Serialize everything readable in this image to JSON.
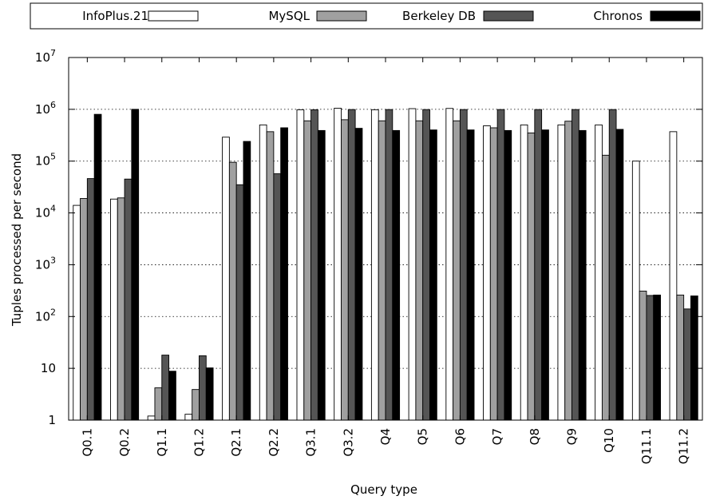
{
  "chart_data": {
    "type": "bar",
    "xlabel": "Query type",
    "ylabel": "Tuples processed per second",
    "yscale": "log",
    "ylim": [
      1,
      10000000
    ],
    "grid": "horizontal dotted",
    "legend_position": "top",
    "yticks": [
      {
        "value": 1,
        "base": "1",
        "exp": ""
      },
      {
        "value": 10,
        "base": "10",
        "exp": ""
      },
      {
        "value": 100,
        "base": "10",
        "exp": "2"
      },
      {
        "value": 1000,
        "base": "10",
        "exp": "3"
      },
      {
        "value": 10000,
        "base": "10",
        "exp": "4"
      },
      {
        "value": 100000,
        "base": "10",
        "exp": "5"
      },
      {
        "value": 1000000,
        "base": "10",
        "exp": "6"
      },
      {
        "value": 10000000,
        "base": "10",
        "exp": "7"
      }
    ],
    "categories": [
      "Q0.1",
      "Q0.2",
      "Q1.1",
      "Q1.2",
      "Q2.1",
      "Q2.2",
      "Q3.1",
      "Q3.2",
      "Q4",
      "Q5",
      "Q6",
      "Q7",
      "Q8",
      "Q9",
      "Q10",
      "Q11.1",
      "Q11.2"
    ],
    "series": [
      {
        "name": "InfoPlus.21",
        "fill": "#ffffff",
        "values": [
          14000,
          18500,
          1.2,
          1.3,
          290000,
          500000,
          980000,
          1050000,
          980000,
          1030000,
          1040000,
          480000,
          500000,
          500000,
          500000,
          100000,
          370000
        ]
      },
      {
        "name": "MySQL",
        "fill": "#a0a0a0",
        "values": [
          19000,
          19500,
          4.2,
          3.9,
          95000,
          370000,
          600000,
          630000,
          600000,
          600000,
          600000,
          440000,
          350000,
          590000,
          130000,
          310,
          260
        ]
      },
      {
        "name": "Berkeley DB",
        "fill": "#555555",
        "values": [
          46000,
          45000,
          18,
          17.5,
          35000,
          57000,
          980000,
          990000,
          990000,
          990000,
          990000,
          990000,
          990000,
          990000,
          990000,
          255,
          140
        ]
      },
      {
        "name": "Chronos",
        "fill": "#000000",
        "values": [
          800000,
          1000000,
          8.8,
          10.2,
          240000,
          440000,
          390000,
          430000,
          390000,
          400000,
          400000,
          390000,
          400000,
          390000,
          410000,
          260,
          250
        ]
      }
    ]
  }
}
